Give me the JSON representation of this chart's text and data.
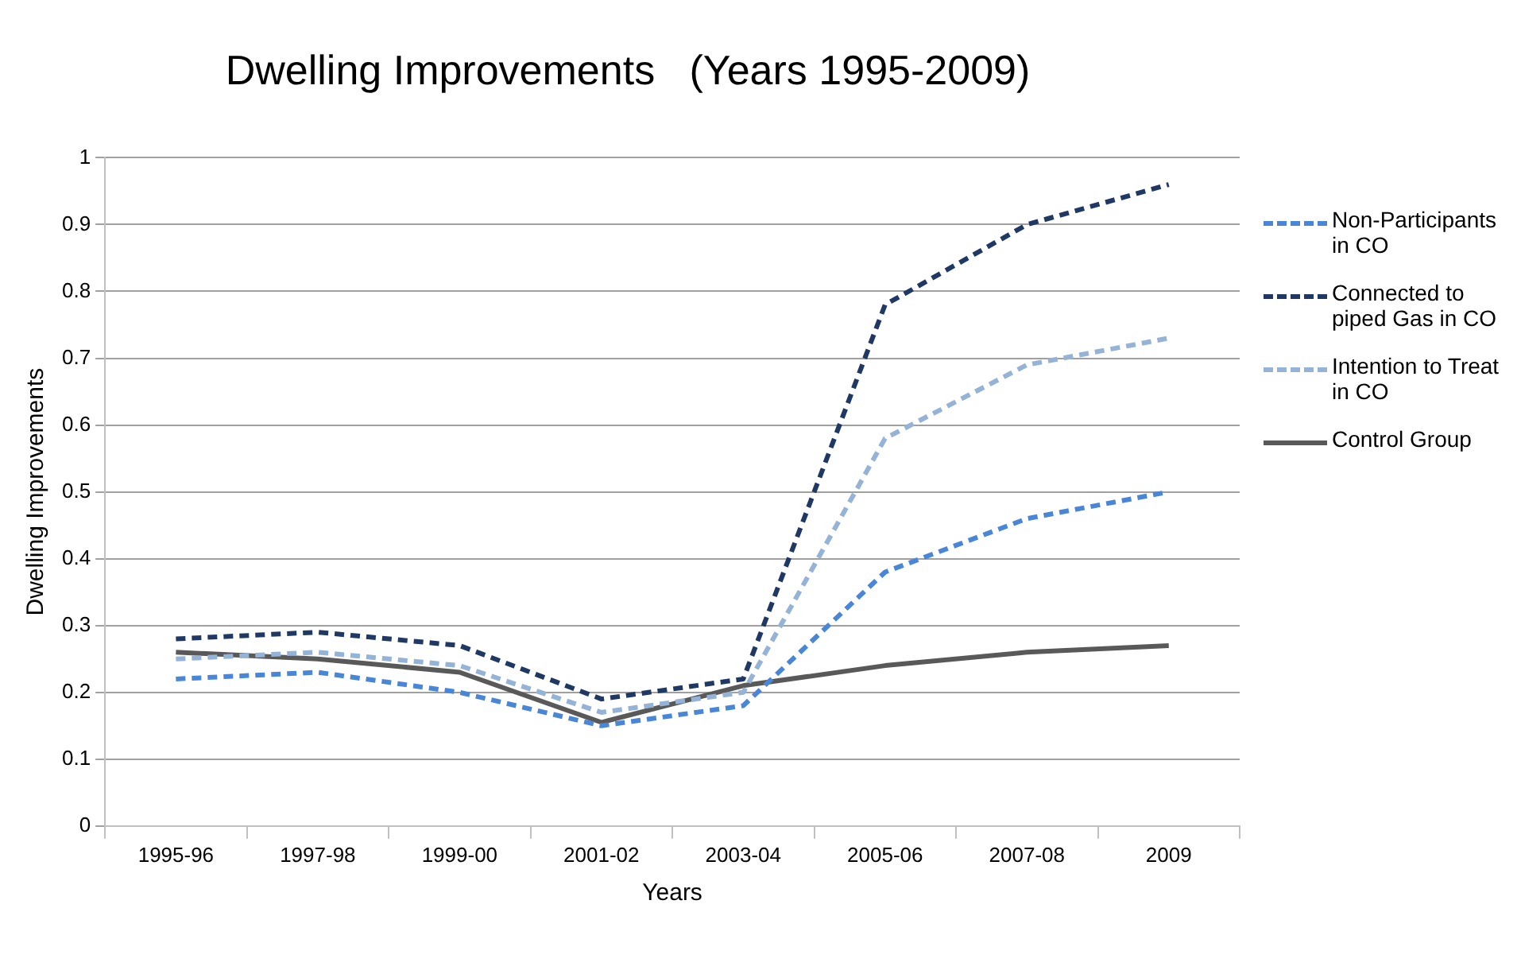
{
  "chart_data": {
    "type": "line",
    "title": "Dwelling Improvements   (Years 1995-2009)",
    "xlabel": "Years",
    "ylabel": "Dwelling Improvements",
    "categories": [
      "1995-96",
      "1997-98",
      "1999-00",
      "2001-02",
      "2003-04",
      "2005-06",
      "2007-08",
      "2009"
    ],
    "ylim": [
      0,
      1
    ],
    "yticks": [
      0,
      0.1,
      0.2,
      0.3,
      0.4,
      0.5,
      0.6,
      0.7,
      0.8,
      0.9,
      1
    ],
    "grid": "y",
    "legend": "right",
    "marker": "none",
    "series": [
      {
        "name": "Non-Participants in CO",
        "color": "#4a86d8",
        "line_style": "dashed",
        "values": [
          0.22,
          0.23,
          0.2,
          0.15,
          0.18,
          0.38,
          0.46,
          0.5
        ]
      },
      {
        "name": "Connected to piped Gas in CO",
        "color": "#1f3864",
        "line_style": "dashed",
        "values": [
          0.28,
          0.29,
          0.27,
          0.19,
          0.22,
          0.78,
          0.9,
          0.96
        ]
      },
      {
        "name": "Intention to Treat in CO",
        "color": "#95b3d7",
        "line_style": "dashed",
        "values": [
          0.25,
          0.26,
          0.24,
          0.17,
          0.2,
          0.58,
          0.69,
          0.73
        ]
      },
      {
        "name": "Control Group",
        "color": "#595959",
        "line_style": "solid",
        "values": [
          0.26,
          0.25,
          0.23,
          0.155,
          0.21,
          0.24,
          0.26,
          0.27
        ]
      }
    ]
  }
}
